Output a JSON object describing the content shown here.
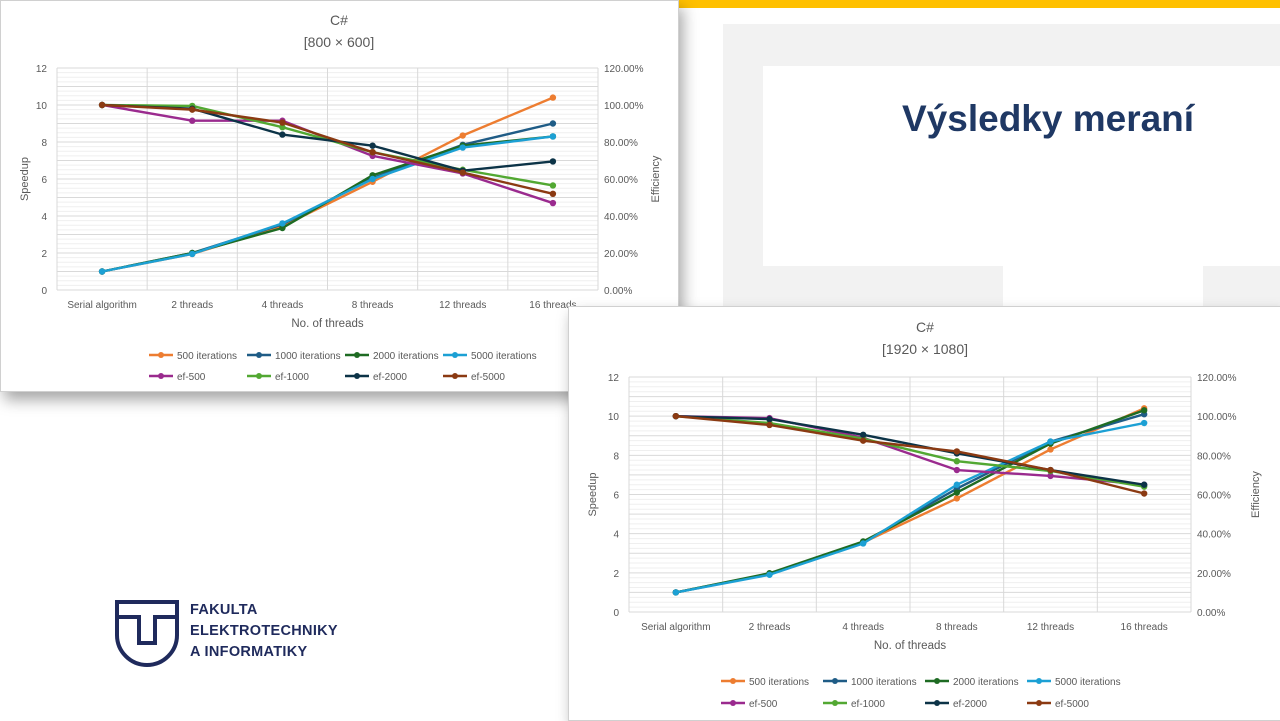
{
  "slide": {
    "title": "Výsledky meraní",
    "accent_color": "#FFC000",
    "title_color": "#1F3864",
    "logo_lines": [
      "FAKULTA",
      "ELEKTROTECHNIKY",
      "A INFORMATIKY"
    ],
    "logo_color": "#1F2A5C"
  },
  "chart_data": [
    {
      "type": "line",
      "title": "C#",
      "subtitle": "[800 × 600]",
      "xlabel": "No. of threads",
      "ylabel": "Speedup",
      "y2label": "Efficiency",
      "categories": [
        "Serial algorithm",
        "2 threads",
        "4 threads",
        "8 threads",
        "12 threads",
        "16 threads"
      ],
      "ylim": [
        0,
        12
      ],
      "yticks": [
        "0",
        "2",
        "4",
        "6",
        "8",
        "10",
        "12"
      ],
      "y2lim": [
        0,
        120
      ],
      "y2ticks": [
        "0.00%",
        "20.00%",
        "40.00%",
        "60.00%",
        "80.00%",
        "100.00%",
        "120.00%"
      ],
      "grid": true,
      "legend_position": "bottom",
      "series": [
        {
          "name": "500 iterations",
          "axis": "left",
          "color": "#ED7D31",
          "values": [
            1,
            1.95,
            3.45,
            5.85,
            8.35,
            10.4
          ]
        },
        {
          "name": "1000 iterations",
          "axis": "left",
          "color": "#1F5C86",
          "values": [
            1,
            2.0,
            3.55,
            6.05,
            7.85,
            9.0
          ]
        },
        {
          "name": "2000 iterations",
          "axis": "left",
          "color": "#1E6B23",
          "values": [
            1,
            2.0,
            3.35,
            6.2,
            7.8,
            8.3
          ]
        },
        {
          "name": "5000 iterations",
          "axis": "left",
          "color": "#1CA0D4",
          "values": [
            1,
            1.95,
            3.6,
            6.0,
            7.7,
            8.3
          ]
        },
        {
          "name": "ef-500",
          "axis": "right",
          "color": "#9A2A8E",
          "values": [
            100,
            91.5,
            91.5,
            72.5,
            63.0,
            47.0
          ]
        },
        {
          "name": "ef-1000",
          "axis": "right",
          "color": "#52A832",
          "values": [
            100,
            99.5,
            88.0,
            74.5,
            65.0,
            56.5
          ]
        },
        {
          "name": "ef-2000",
          "axis": "right",
          "color": "#0C3347",
          "values": [
            100,
            98.0,
            84.0,
            78.0,
            64.5,
            69.5
          ]
        },
        {
          "name": "ef-5000",
          "axis": "right",
          "color": "#8B3A12",
          "values": [
            100,
            97.5,
            90.5,
            74.5,
            63.5,
            52.0
          ]
        }
      ]
    },
    {
      "type": "line",
      "title": "C#",
      "subtitle": "[1920 × 1080]",
      "xlabel": "No. of threads",
      "ylabel": "Speedup",
      "y2label": "Efficiency",
      "categories": [
        "Serial algorithm",
        "2 threads",
        "4 threads",
        "8 threads",
        "12 threads",
        "16 threads"
      ],
      "ylim": [
        0,
        12
      ],
      "yticks": [
        "0",
        "2",
        "4",
        "6",
        "8",
        "10",
        "12"
      ],
      "y2lim": [
        0,
        120
      ],
      "y2ticks": [
        "0.00%",
        "20.00%",
        "40.00%",
        "60.00%",
        "80.00%",
        "100.00%",
        "120.00%"
      ],
      "grid": true,
      "legend_position": "bottom",
      "series": [
        {
          "name": "500 iterations",
          "axis": "left",
          "color": "#ED7D31",
          "values": [
            1,
            1.95,
            3.55,
            5.8,
            8.3,
            10.4
          ]
        },
        {
          "name": "1000 iterations",
          "axis": "left",
          "color": "#1F5C86",
          "values": [
            1,
            1.95,
            3.55,
            6.3,
            8.7,
            10.1
          ]
        },
        {
          "name": "2000 iterations",
          "axis": "left",
          "color": "#1E6B23",
          "values": [
            1,
            1.98,
            3.6,
            6.1,
            8.6,
            10.3
          ]
        },
        {
          "name": "5000 iterations",
          "axis": "left",
          "color": "#1CA0D4",
          "values": [
            1,
            1.9,
            3.5,
            6.5,
            8.7,
            9.65
          ]
        },
        {
          "name": "ef-500",
          "axis": "right",
          "color": "#9A2A8E",
          "values": [
            100,
            99.0,
            89.0,
            72.5,
            69.5,
            65.0
          ]
        },
        {
          "name": "ef-1000",
          "axis": "right",
          "color": "#52A832",
          "values": [
            100,
            96.5,
            88.5,
            77.0,
            72.0,
            64.0
          ]
        },
        {
          "name": "ef-2000",
          "axis": "right",
          "color": "#0C3347",
          "values": [
            100,
            98.5,
            90.5,
            81.0,
            72.5,
            65.0
          ]
        },
        {
          "name": "ef-5000",
          "axis": "right",
          "color": "#8B3A12",
          "values": [
            100,
            95.5,
            87.5,
            82.0,
            72.5,
            60.5
          ]
        }
      ]
    }
  ]
}
